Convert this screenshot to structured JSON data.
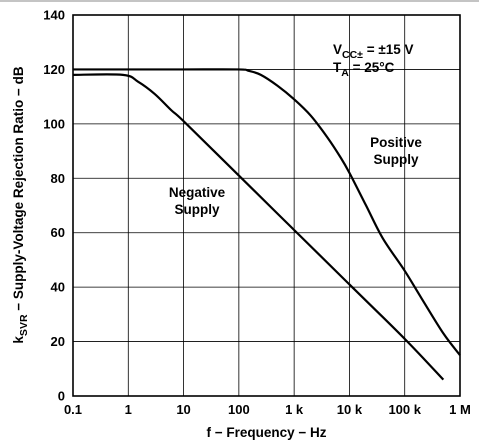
{
  "chart_data": {
    "type": "line",
    "xlabel": "f − Frequency − Hz",
    "ylabel": {
      "prefix": "k",
      "subscript": "SVR",
      "rest": " − Supply-Voltage Rejection Ratio − dB"
    },
    "x_scale": "log",
    "xlim": [
      0.1,
      1000000
    ],
    "ylim": [
      0,
      140
    ],
    "x_ticks": [
      {
        "value": 0.1,
        "label": "0.1"
      },
      {
        "value": 1,
        "label": "1"
      },
      {
        "value": 10,
        "label": "10"
      },
      {
        "value": 100,
        "label": "100"
      },
      {
        "value": 1000,
        "label": "1 k"
      },
      {
        "value": 10000,
        "label": "10 k"
      },
      {
        "value": 100000,
        "label": "100 k"
      },
      {
        "value": 1000000,
        "label": "1 M"
      }
    ],
    "y_ticks": [
      {
        "value": 0,
        "label": "0"
      },
      {
        "value": 20,
        "label": "20"
      },
      {
        "value": 40,
        "label": "40"
      },
      {
        "value": 60,
        "label": "60"
      },
      {
        "value": 80,
        "label": "80"
      },
      {
        "value": 100,
        "label": "100"
      },
      {
        "value": 120,
        "label": "120"
      },
      {
        "value": 140,
        "label": "140"
      }
    ],
    "grid": true,
    "series": [
      {
        "name": "Positive Supply",
        "label_lines": [
          "Positive",
          "Supply"
        ],
        "color": "#000000",
        "points": [
          [
            0.1,
            120
          ],
          [
            1,
            120
          ],
          [
            10,
            120
          ],
          [
            100,
            120
          ],
          [
            150,
            119.5
          ],
          [
            250,
            118
          ],
          [
            500,
            114
          ],
          [
            1000,
            109
          ],
          [
            2000,
            103
          ],
          [
            4000,
            95
          ],
          [
            7000,
            87.5
          ],
          [
            10000,
            82
          ],
          [
            20000,
            70
          ],
          [
            40000,
            58
          ],
          [
            100000,
            46
          ],
          [
            200000,
            36
          ],
          [
            500000,
            23
          ],
          [
            1000000,
            15
          ]
        ]
      },
      {
        "name": "Negative Supply",
        "label_lines": [
          "Negative",
          "Supply"
        ],
        "color": "#000000",
        "points": [
          [
            0.1,
            118
          ],
          [
            0.8,
            118
          ],
          [
            1.5,
            115.5
          ],
          [
            3,
            111
          ],
          [
            6,
            105
          ],
          [
            10,
            101
          ],
          [
            100,
            81
          ],
          [
            1000,
            61
          ],
          [
            10000,
            41
          ],
          [
            100000,
            21
          ],
          [
            500000,
            6
          ]
        ]
      }
    ],
    "annotations": [
      {
        "id": "vcc",
        "main": "V",
        "sub": "CC±",
        "rest": " = ±15 V"
      },
      {
        "id": "ta",
        "main": "T",
        "sub": "A",
        "rest": " = 25°C"
      }
    ]
  }
}
